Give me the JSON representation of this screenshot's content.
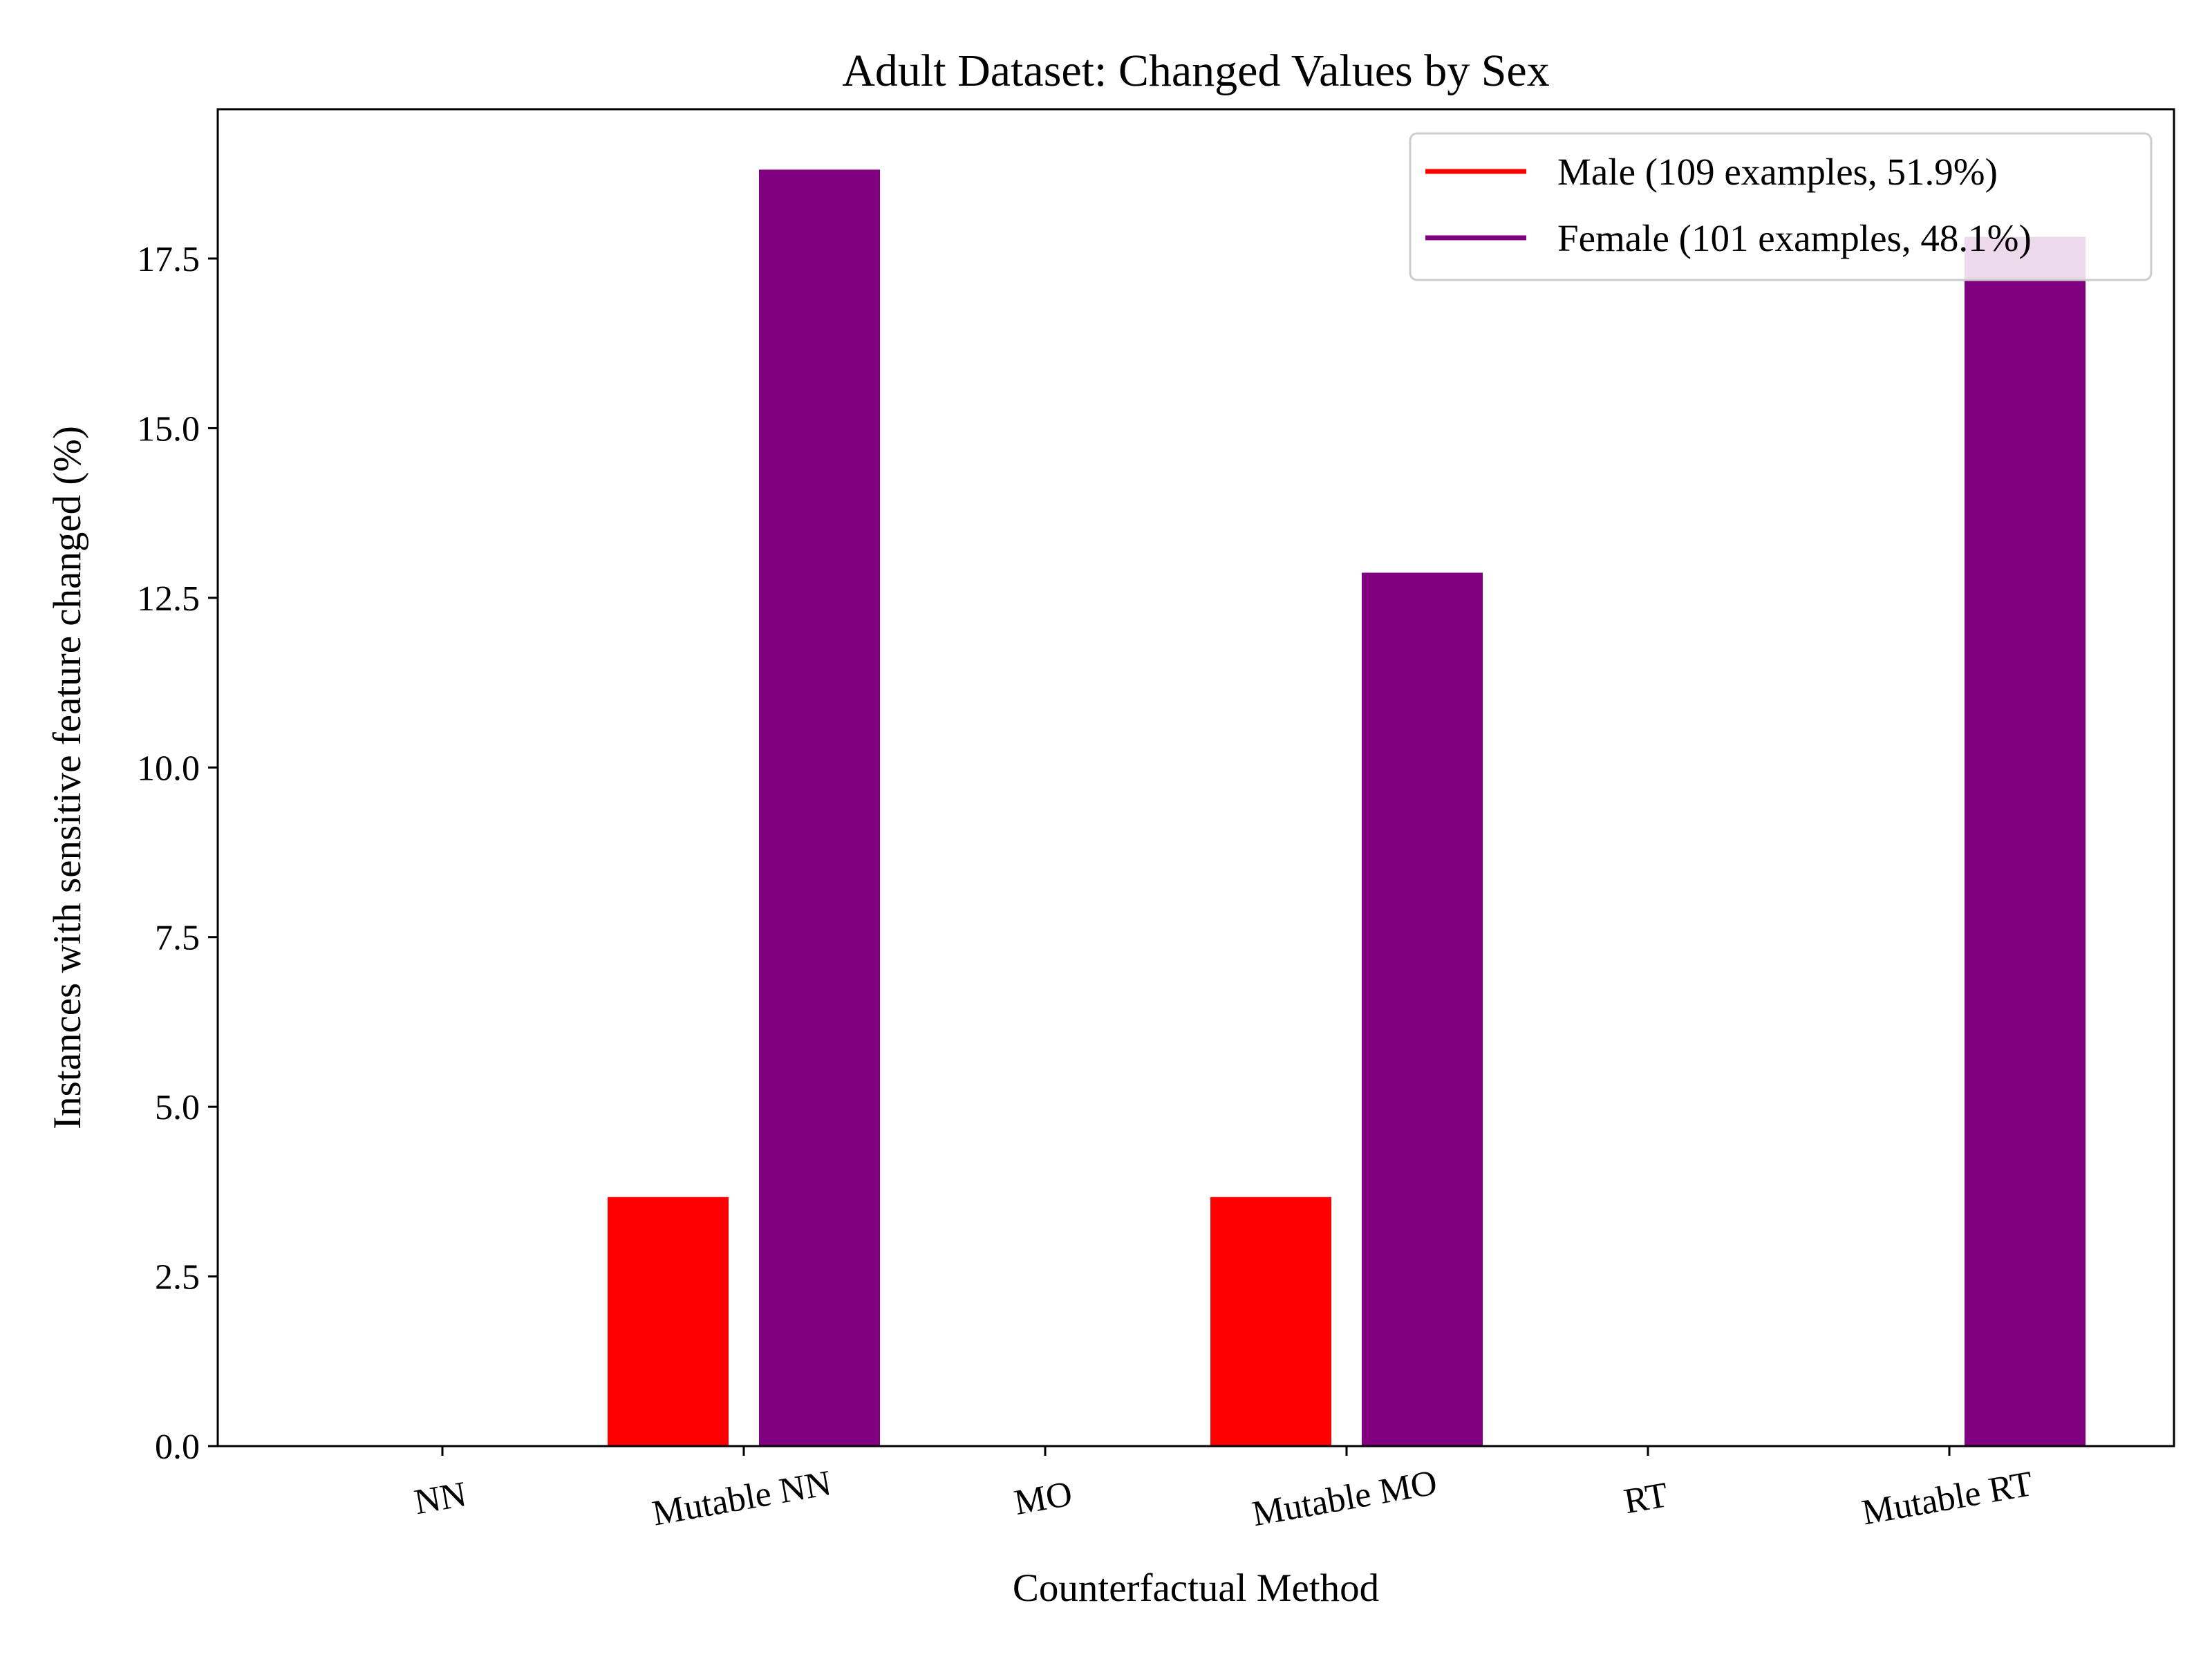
{
  "chart_data": {
    "type": "bar",
    "title": "Adult Dataset: Changed Values by Sex",
    "xlabel": "Counterfactual Method",
    "ylabel": "Instances with sensitive feature changed (%)",
    "categories": [
      "NN",
      "Mutable NN",
      "MO",
      "Mutable MO",
      "RT",
      "Mutable RT"
    ],
    "ylim": [
      0,
      19.7
    ],
    "yticks": [
      0.0,
      2.5,
      5.0,
      7.5,
      10.0,
      12.5,
      15.0,
      17.5
    ],
    "ytick_labels": [
      "0.0",
      "2.5",
      "5.0",
      "7.5",
      "10.0",
      "12.5",
      "15.0",
      "17.5"
    ],
    "grid": false,
    "legend_position": "top-right",
    "series": [
      {
        "name": "Male (109 examples, 51.9%)",
        "color": "#ff0000",
        "values": [
          0,
          3.67,
          0,
          3.67,
          0,
          0
        ]
      },
      {
        "name": "Female (101 examples, 48.1%)",
        "color": "#800080",
        "values": [
          0,
          18.81,
          0,
          12.87,
          0,
          17.82
        ]
      }
    ]
  }
}
